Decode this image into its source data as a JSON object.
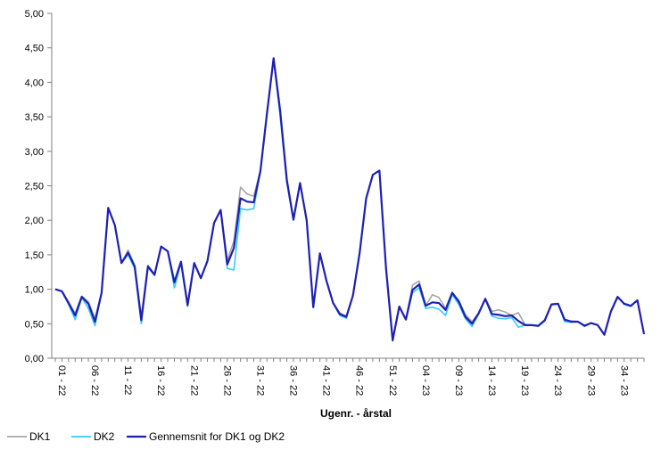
{
  "chart_data": {
    "type": "line",
    "title": "",
    "xlabel": "Ugenr. - årstal",
    "ylabel": "",
    "ylim": [
      0,
      5
    ],
    "ytick_labels": [
      "0,00",
      "0,50",
      "1,00",
      "1,50",
      "2,00",
      "2,50",
      "3,00",
      "3,50",
      "4,00",
      "4,50",
      "5,00"
    ],
    "ytick_values": [
      0,
      0.5,
      1,
      1.5,
      2,
      2.5,
      3,
      3.5,
      4,
      4.5,
      5
    ],
    "xtick_labels": [
      "01 - 22",
      "06 - 22",
      "11 - 22",
      "16 - 22",
      "21 - 22",
      "26 - 22",
      "31 - 22",
      "36 - 22",
      "41 - 22",
      "46 - 22",
      "51 - 22",
      "04 - 23",
      "09 - 23",
      "14 - 23",
      "19 - 23",
      "24 - 23",
      "29 - 23",
      "34 - 23"
    ],
    "xtick_indices": [
      0,
      5,
      10,
      15,
      20,
      25,
      30,
      35,
      40,
      45,
      50,
      55,
      60,
      65,
      70,
      75,
      80,
      85
    ],
    "series": [
      {
        "name": "DK1",
        "color": "#a6a6a6",
        "values": [
          1.0,
          0.97,
          0.82,
          0.65,
          0.9,
          0.82,
          0.58,
          0.95,
          2.18,
          1.93,
          1.38,
          1.57,
          1.35,
          0.6,
          1.35,
          1.22,
          1.62,
          1.55,
          1.12,
          1.4,
          0.8,
          1.38,
          1.16,
          1.41,
          1.96,
          2.15,
          1.42,
          1.7,
          2.48,
          2.38,
          2.35,
          2.72,
          3.55,
          4.35,
          3.6,
          2.62,
          2.02,
          2.54,
          2.0,
          0.74,
          1.52,
          1.12,
          0.8,
          0.66,
          0.61,
          0.91,
          1.52,
          2.32,
          2.66,
          2.72,
          1.3,
          0.27,
          0.75,
          0.56,
          1.06,
          1.12,
          0.76,
          0.92,
          0.88,
          0.72,
          0.95,
          0.84,
          0.63,
          0.53,
          0.66,
          0.87,
          0.68,
          0.7,
          0.67,
          0.62,
          0.66,
          0.49,
          0.48,
          0.47,
          0.56,
          0.78,
          0.79,
          0.53,
          0.54,
          0.53,
          0.48,
          0.51,
          0.48,
          0.34,
          0.68,
          0.89,
          0.79,
          0.76,
          0.84,
          0.35
        ]
      },
      {
        "name": "DK2",
        "color": "#33ccff",
        "values": [
          1.0,
          0.97,
          0.78,
          0.56,
          0.88,
          0.72,
          0.47,
          0.95,
          2.18,
          1.93,
          1.38,
          1.5,
          1.3,
          0.5,
          1.32,
          1.2,
          1.62,
          1.55,
          1.02,
          1.38,
          0.75,
          1.38,
          1.16,
          1.4,
          1.96,
          2.15,
          1.3,
          1.28,
          2.17,
          2.15,
          2.17,
          2.7,
          3.55,
          4.35,
          3.5,
          2.55,
          2.0,
          2.54,
          2.0,
          0.74,
          1.52,
          1.12,
          0.8,
          0.62,
          0.58,
          0.91,
          1.52,
          2.32,
          2.66,
          2.72,
          1.3,
          0.25,
          0.75,
          0.56,
          0.95,
          1.02,
          0.72,
          0.74,
          0.71,
          0.62,
          0.92,
          0.78,
          0.57,
          0.46,
          0.64,
          0.86,
          0.61,
          0.58,
          0.57,
          0.59,
          0.45,
          0.48,
          0.48,
          0.46,
          0.54,
          0.77,
          0.79,
          0.53,
          0.52,
          0.53,
          0.46,
          0.51,
          0.48,
          0.34,
          0.68,
          0.89,
          0.78,
          0.75,
          0.84,
          0.35
        ]
      },
      {
        "name": "Gennemsnit for DK1 og DK2",
        "color": "#1f1fb4",
        "values": [
          1.0,
          0.97,
          0.8,
          0.62,
          0.89,
          0.79,
          0.53,
          0.95,
          2.18,
          1.93,
          1.38,
          1.53,
          1.33,
          0.55,
          1.33,
          1.21,
          1.62,
          1.55,
          1.1,
          1.4,
          0.77,
          1.38,
          1.16,
          1.41,
          1.96,
          2.15,
          1.36,
          1.6,
          2.32,
          2.27,
          2.26,
          2.71,
          3.55,
          4.35,
          3.58,
          2.58,
          2.01,
          2.54,
          2.0,
          0.74,
          1.52,
          1.12,
          0.8,
          0.64,
          0.6,
          0.91,
          1.52,
          2.32,
          2.66,
          2.72,
          1.3,
          0.26,
          0.75,
          0.56,
          0.99,
          1.07,
          0.76,
          0.81,
          0.8,
          0.7,
          0.95,
          0.82,
          0.6,
          0.5,
          0.65,
          0.86,
          0.64,
          0.63,
          0.61,
          0.62,
          0.54,
          0.48,
          0.48,
          0.47,
          0.55,
          0.78,
          0.79,
          0.56,
          0.53,
          0.53,
          0.47,
          0.51,
          0.48,
          0.34,
          0.68,
          0.89,
          0.79,
          0.76,
          0.84,
          0.35
        ]
      }
    ],
    "legend": {
      "placement": "bottom-left",
      "entries": [
        "DK1",
        "DK2",
        "Gennemsnit for DK1 og DK2"
      ]
    },
    "grid": false
  }
}
